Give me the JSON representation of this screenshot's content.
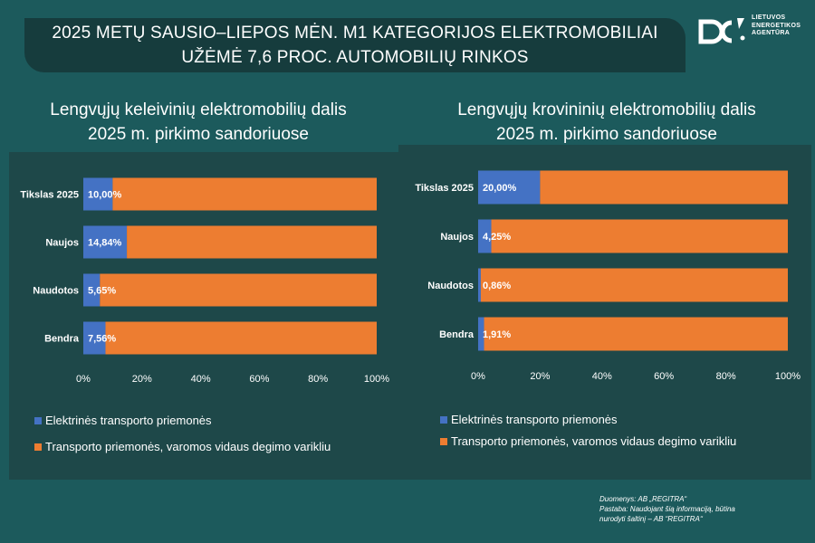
{
  "header": {
    "title_line1": "2025 METŲ SAUSIO–LIEPOS MĖN. M1 KATEGORIJOS ELEKTROMOBILIAI",
    "title_line2": "UŽĖMĖ 7,6 PROC.  AUTOMOBILIŲ RINKOS"
  },
  "logo": {
    "line1": "LIETUVOS",
    "line2": "ENERGETIKOS",
    "line3": "AGENTŪRA",
    "icon": "lea-logo-icon"
  },
  "colors": {
    "background": "#1c5a5c",
    "panel": "#1e4849",
    "banner": "#163c3d",
    "electric": "#4472c4",
    "ice": "#ed7d31"
  },
  "chart_data": [
    {
      "type": "bar",
      "orientation": "horizontal",
      "stacked": "100%",
      "title_line1": "Lengvųjų keleivinių elektromobilių dalis",
      "title_line2": "2025 m. pirkimo sandoriuose",
      "categories": [
        "Tikslas 2025",
        "Naujos",
        "Naudotos",
        "Bendra"
      ],
      "series": [
        {
          "name": "Elektrinės transporto priemonės",
          "values": [
            10.0,
            14.84,
            5.65,
            7.56
          ],
          "labels": [
            "10,00%",
            "14,84%",
            "5,65%",
            "7,56%"
          ]
        },
        {
          "name": "Transporto priemonės, varomos vidaus degimo varikliu",
          "values": [
            90.0,
            85.16,
            94.35,
            92.44
          ]
        }
      ],
      "xlim": [
        0,
        100
      ],
      "xticks": [
        "0%",
        "20%",
        "40%",
        "60%",
        "80%",
        "100%"
      ],
      "legend": "bottom"
    },
    {
      "type": "bar",
      "orientation": "horizontal",
      "stacked": "100%",
      "title_line1": "Lengvųjų krovininių elektromobilių dalis",
      "title_line2": "2025 m. pirkimo sandoriuose",
      "categories": [
        "Tikslas 2025",
        "Naujos",
        "Naudotos",
        "Bendra"
      ],
      "series": [
        {
          "name": "Elektrinės transporto priemonės",
          "values": [
            20.0,
            4.25,
            0.86,
            1.91
          ],
          "labels": [
            "20,00%",
            "4,25%",
            "0,86%",
            "1,91%"
          ]
        },
        {
          "name": "Transporto priemonės, varomos vidaus degimo varikliu",
          "values": [
            80.0,
            95.75,
            99.14,
            98.09
          ]
        }
      ],
      "xlim": [
        0,
        100
      ],
      "xticks": [
        "0%",
        "20%",
        "40%",
        "60%",
        "80%",
        "100%"
      ],
      "legend": "bottom"
    }
  ],
  "note": {
    "line1": "Duomenys: AB „REGITRA“",
    "line2": "Pastaba: Naudojant šią informaciją, būtina",
    "line3": "nurodyti šaltinį – AB “REGITRA‘‘"
  }
}
